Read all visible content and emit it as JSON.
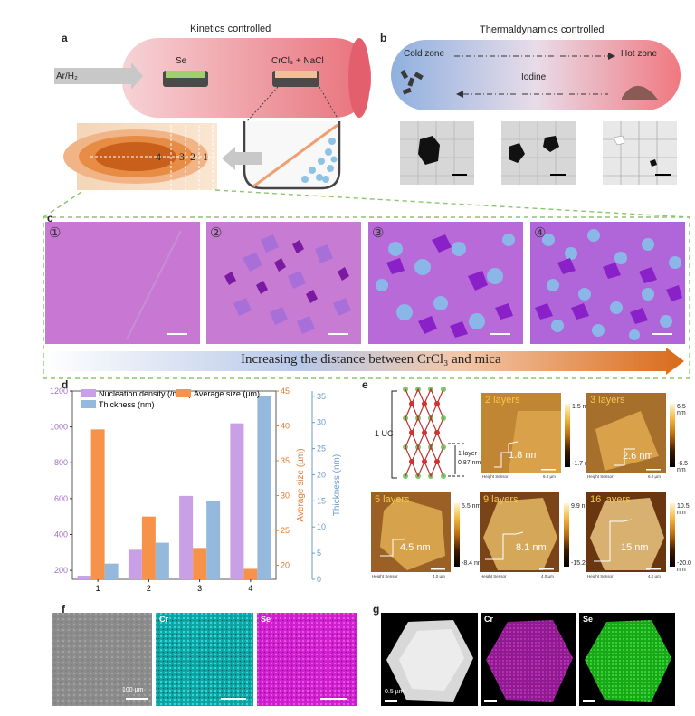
{
  "panels": {
    "a": {
      "label": "a",
      "title": "Kinetics controlled",
      "gas": "Ar/H₂",
      "se": "Se",
      "precursor": "CrCl₃ + NaCl",
      "locations": [
        "4",
        "3",
        "2",
        "1"
      ]
    },
    "b": {
      "label": "b",
      "title": "Thermaldynamics controlled",
      "cold": "Cold zone",
      "hot": "Hot zone",
      "agent": "Iodine"
    },
    "c": {
      "label": "c",
      "images": [
        "①",
        "②",
        "③",
        "④"
      ],
      "arrow_text": "Increasing the distance between CrCl₃ and mica"
    },
    "d": {
      "label": "d"
    },
    "e": {
      "label": "e",
      "uc": "1 UC",
      "layer_note_1": "1 layer",
      "layer_note_2": "0.87 nm",
      "sensor": "Height Sensor",
      "images": [
        {
          "layers": "2 layers",
          "height": "1.8 nm",
          "top": "1.5 nm",
          "bottom": "-1.7 nm",
          "scale": "6.0 µm"
        },
        {
          "layers": "3 layers",
          "height": "2.6 nm",
          "top": "6.5 nm",
          "bottom": "-6.5 nm",
          "scale": "6.0 µm"
        },
        {
          "layers": "5 layers",
          "height": "4.5 nm",
          "top": "5.5 nm",
          "bottom": "-8.4 nm",
          "scale": "4.0 µm"
        },
        {
          "layers": "9 layers",
          "height": "8.1 nm",
          "top": "9.9 nm",
          "bottom": "-15.2 nm",
          "scale": "4.0 µm"
        },
        {
          "layers": "16 layers",
          "height": "15 nm",
          "top": "10.5 nm",
          "bottom": "-20.0 nm",
          "scale": "4.0 µm"
        }
      ]
    },
    "f": {
      "label": "f",
      "cr": "Cr",
      "se": "Se",
      "scale": "100 µm"
    },
    "g": {
      "label": "g",
      "cr": "Cr",
      "se": "Se",
      "scale": "0.5 µm"
    }
  },
  "colors": {
    "density": "#c9a0e6",
    "size": "#f7924a",
    "thickness": "#94b9dc",
    "cyan_map": "#18c8c8",
    "magenta_map": "#e02ae0",
    "green_map": "#22d822"
  },
  "chart_data": {
    "type": "bar",
    "categories": [
      "1",
      "2",
      "3",
      "4"
    ],
    "xlabel": "Location (#)",
    "series": [
      {
        "name": "Nucleation density (/mm²)",
        "axis": "left",
        "values": [
          170,
          315,
          615,
          1020
        ]
      },
      {
        "name": "Average size (µm)",
        "axis": "right1",
        "values": [
          39.5,
          27,
          22.5,
          19.5
        ]
      },
      {
        "name": "Thickness (nm)",
        "axis": "right2",
        "values": [
          3,
          7,
          15,
          35
        ]
      }
    ],
    "axes": {
      "left": {
        "label": "Nucleation density (/mm²)",
        "ylim": [
          150,
          1200
        ],
        "ticks": [
          200,
          400,
          600,
          800,
          1000,
          1200
        ]
      },
      "right1": {
        "label": "Average size (µm)",
        "ylim": [
          18,
          45
        ],
        "ticks": [
          20,
          25,
          30,
          35,
          40,
          45
        ]
      },
      "right2": {
        "label": "Thickness (nm)",
        "ylim": [
          0,
          36
        ],
        "ticks": [
          0,
          5,
          10,
          15,
          20,
          25,
          30,
          35
        ]
      }
    },
    "legend_position": "top-left",
    "grid": false
  }
}
